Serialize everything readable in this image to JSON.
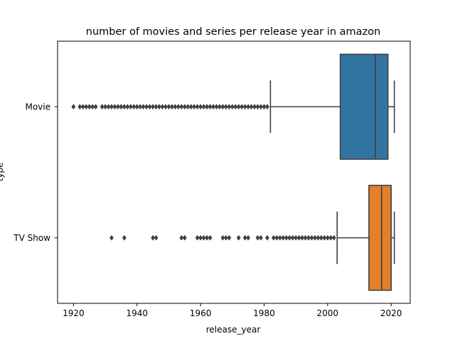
{
  "chart_data": {
    "type": "boxplot",
    "orientation": "horizontal",
    "title": "number of movies and series per release year in amazon",
    "xlabel": "release_year",
    "ylabel": "type",
    "xlim": [
      1915,
      2026
    ],
    "xticks": [
      1920,
      1940,
      1960,
      1980,
      2000,
      2020
    ],
    "grid": false,
    "categories": [
      "Movie",
      "TV Show"
    ],
    "boxes": [
      {
        "category": "Movie",
        "color": "#3274a1",
        "whisker_low": 1982,
        "q1": 2004,
        "median": 2015,
        "q3": 2019,
        "whisker_high": 2021,
        "outliers": [
          1920,
          1922,
          1923,
          1924,
          1925,
          1926,
          1927,
          1929,
          1930,
          1931,
          1932,
          1933,
          1934,
          1935,
          1936,
          1937,
          1938,
          1939,
          1940,
          1941,
          1942,
          1943,
          1944,
          1945,
          1946,
          1947,
          1948,
          1949,
          1950,
          1951,
          1952,
          1953,
          1954,
          1955,
          1956,
          1957,
          1958,
          1959,
          1960,
          1961,
          1962,
          1963,
          1964,
          1965,
          1966,
          1967,
          1968,
          1969,
          1970,
          1971,
          1972,
          1973,
          1974,
          1975,
          1976,
          1977,
          1978,
          1979,
          1980,
          1981
        ]
      },
      {
        "category": "TV Show",
        "color": "#e1812c",
        "whisker_low": 2003,
        "q1": 2013,
        "median": 2017,
        "q3": 2020,
        "whisker_high": 2021,
        "outliers": [
          1932,
          1936,
          1945,
          1946,
          1954,
          1955,
          1959,
          1960,
          1961,
          1962,
          1963,
          1967,
          1968,
          1969,
          1972,
          1974,
          1975,
          1978,
          1979,
          1981,
          1983,
          1984,
          1985,
          1986,
          1987,
          1988,
          1989,
          1990,
          1991,
          1992,
          1993,
          1994,
          1995,
          1996,
          1997,
          1998,
          1999,
          2000,
          2001,
          2002
        ]
      }
    ]
  }
}
